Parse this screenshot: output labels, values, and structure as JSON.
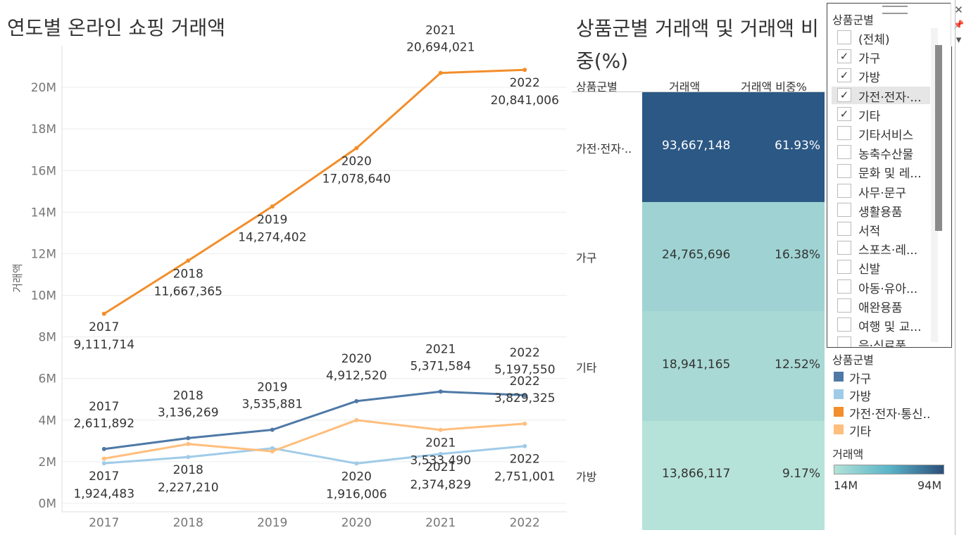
{
  "chart_data": [
    {
      "type": "line",
      "title": "연도별 온라인 쇼핑 거래액",
      "xlabel": "",
      "ylabel": "거래액",
      "ylim": [
        0,
        22000000
      ],
      "categories": [
        "2017",
        "2018",
        "2019",
        "2020",
        "2021",
        "2022"
      ],
      "y_ticks": [
        "0M",
        "2M",
        "4M",
        "6M",
        "8M",
        "10M",
        "12M",
        "14M",
        "16M",
        "18M",
        "20M"
      ],
      "series": [
        {
          "name": "가전·전자·통신..",
          "color": "#f28e2b",
          "values": [
            9111714,
            11667365,
            14274402,
            17078640,
            20694021,
            20841006
          ],
          "labels": [
            "9,111,714",
            "11,667,365",
            "14,274,402",
            "17,078,640",
            "20,694,021",
            "20,841,006"
          ],
          "label_pos": [
            "below",
            "below",
            "below",
            "below",
            "above",
            "below"
          ]
        },
        {
          "name": "가구",
          "color": "#4e79a7",
          "values": [
            2611892,
            3136269,
            3535881,
            4912520,
            5371584,
            5197550
          ],
          "labels": [
            "2,611,892",
            "3,136,269",
            "3,535,881",
            "4,912,520",
            "5,371,584",
            "5,197,550"
          ],
          "label_pos": [
            "above",
            "above",
            "above",
            "above",
            "above",
            "above"
          ]
        },
        {
          "name": "가방",
          "color": "#a0cbe8",
          "values": [
            1924483,
            2227210,
            2650000,
            1916006,
            2374829,
            2751001
          ],
          "labels": [
            "1,924,483",
            "2,227,210",
            null,
            "1,916,006",
            "2,374,829",
            "2,751,001"
          ],
          "label_pos": [
            "below",
            "below",
            null,
            "below",
            "below",
            "below"
          ]
        },
        {
          "name": "기타",
          "color": "#ffbe7d",
          "values": [
            2150000,
            2850000,
            2500000,
            4000000,
            3533490,
            3829325
          ],
          "labels": [
            null,
            null,
            null,
            null,
            "3,533,490",
            "3,829,325"
          ],
          "label_pos": [
            null,
            null,
            null,
            null,
            "below",
            "above"
          ]
        }
      ]
    },
    {
      "type": "heatmap",
      "title": "상품군별 거래액 및 거래액 비중(%)",
      "columns": [
        "상품군별",
        "거래액",
        "거래액 비중%"
      ],
      "rows": [
        {
          "label": "가전·전자·..",
          "amount": 93667148,
          "amount_text": "93,667,148",
          "share_text": "61.93%",
          "color": "#2c5885",
          "text_color": "#ffffff"
        },
        {
          "label": "가구",
          "amount": 24765696,
          "amount_text": "24,765,696",
          "share_text": "16.38%",
          "color": "#9fd3d3",
          "text_color": "#333333"
        },
        {
          "label": "기타",
          "amount": 18941165,
          "amount_text": "18,941,165",
          "share_text": "12.52%",
          "color": "#a8d9d4",
          "text_color": "#333333"
        },
        {
          "label": "가방",
          "amount": 13866117,
          "amount_text": "13,866,117",
          "share_text": "9.17%",
          "color": "#b6e3d9",
          "text_color": "#333333"
        }
      ]
    }
  ],
  "filter": {
    "title": "상품군별",
    "items": [
      {
        "label": "(전체)",
        "checked": false
      },
      {
        "label": "가구",
        "checked": true
      },
      {
        "label": "가방",
        "checked": true
      },
      {
        "label": "가전·전자·...",
        "checked": true,
        "highlight": true
      },
      {
        "label": "기타",
        "checked": true
      },
      {
        "label": "기타서비스",
        "checked": false
      },
      {
        "label": "농축수산물",
        "checked": false
      },
      {
        "label": "문화 및 레...",
        "checked": false
      },
      {
        "label": "사무·문구",
        "checked": false
      },
      {
        "label": "생활용품",
        "checked": false
      },
      {
        "label": "서적",
        "checked": false
      },
      {
        "label": "스포츠·레...",
        "checked": false
      },
      {
        "label": "신발",
        "checked": false
      },
      {
        "label": "아동·유아...",
        "checked": false
      },
      {
        "label": "애완용품",
        "checked": false
      },
      {
        "label": "여행 및 교...",
        "checked": false
      },
      {
        "label": "음·식료품",
        "checked": false
      }
    ]
  },
  "legend": {
    "title": "상품군별",
    "items": [
      {
        "label": "가구",
        "color": "#4e79a7"
      },
      {
        "label": "가방",
        "color": "#a0cbe8"
      },
      {
        "label": "가전·전자·통신..",
        "color": "#f28e2b"
      },
      {
        "label": "기타",
        "color": "#ffbe7d"
      }
    ]
  },
  "gradient_legend": {
    "title": "거래액",
    "min_label": "14M",
    "max_label": "94M"
  },
  "controls": {
    "close": "✕",
    "pin": "📌",
    "menu": "▾"
  }
}
